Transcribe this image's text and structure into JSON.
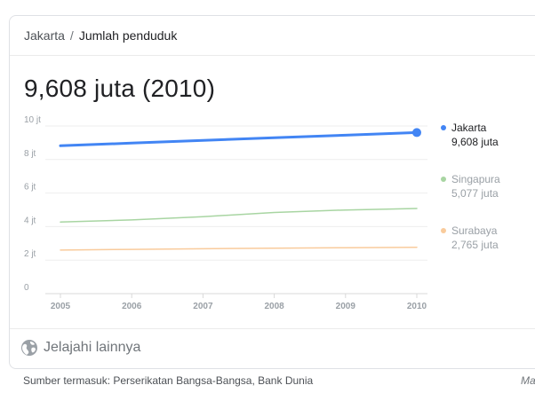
{
  "breadcrumb": {
    "parent": "Jakarta",
    "separator": "/",
    "current": "Jumlah penduduk"
  },
  "headline": "9,608 juta (2010)",
  "explore_label": "Jelajahi lainnya",
  "sources": "Sumber termasuk: Perserikatan Bangsa-Bangsa, Bank Dunia",
  "more_link": "Ma",
  "legend": [
    {
      "name": "Jakarta",
      "value": "9,608 juta",
      "color": "#4285f4",
      "active": true
    },
    {
      "name": "Singapura",
      "value": "5,077 juta",
      "color": "#a8d5a2",
      "active": false
    },
    {
      "name": "Surabaya",
      "value": "2,765 juta",
      "color": "#f9cb9c",
      "active": false
    }
  ],
  "chart_data": {
    "type": "line",
    "x": [
      2005,
      2006,
      2007,
      2008,
      2009,
      2010
    ],
    "x_tick_labels": [
      "2005",
      "2006",
      "2007",
      "2008",
      "2009",
      "2010"
    ],
    "y_tick_labels": [
      "0",
      "2 jt",
      "4 jt",
      "6 jt",
      "8 jt",
      "10 jt"
    ],
    "y_ticks": [
      0,
      2,
      4,
      6,
      8,
      10
    ],
    "ylim": [
      0,
      10
    ],
    "grid": true,
    "legend_position": "right",
    "series": [
      {
        "name": "Jakarta",
        "color": "#4285f4",
        "values": [
          8.82,
          8.98,
          9.14,
          9.3,
          9.45,
          9.608
        ]
      },
      {
        "name": "Singapura",
        "color": "#a8d5a2",
        "values": [
          4.27,
          4.4,
          4.59,
          4.84,
          4.99,
          5.077
        ]
      },
      {
        "name": "Surabaya",
        "color": "#f9cb9c",
        "values": [
          2.6,
          2.64,
          2.68,
          2.71,
          2.74,
          2.765
        ]
      }
    ]
  }
}
